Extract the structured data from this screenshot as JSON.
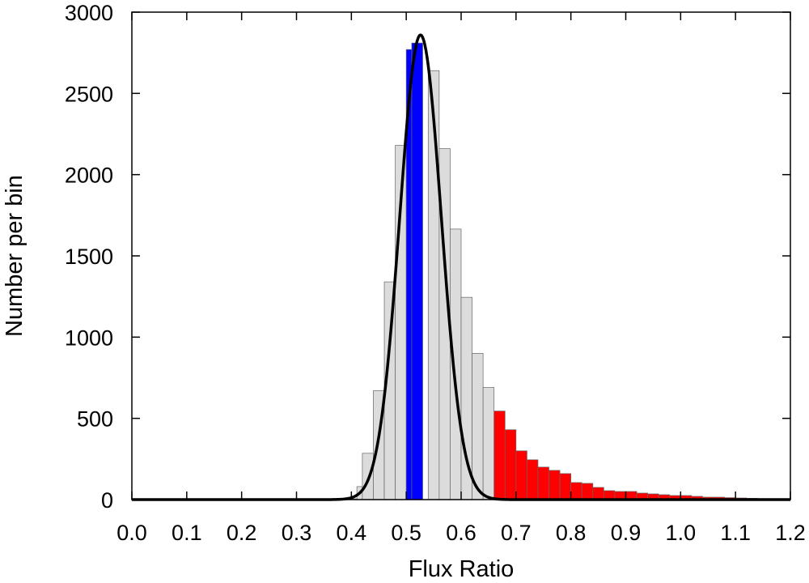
{
  "chart_data": {
    "type": "bar",
    "xlabel": "Flux Ratio",
    "ylabel": "Number per bin",
    "xlim": [
      0.0,
      1.2
    ],
    "ylim": [
      0,
      3000
    ],
    "xticks": [
      "0.0",
      "0.1",
      "0.2",
      "0.3",
      "0.4",
      "0.5",
      "0.6",
      "0.7",
      "0.8",
      "0.9",
      "1.0",
      "1.1",
      "1.2"
    ],
    "yticks": [
      "0",
      "500",
      "1000",
      "1500",
      "2000",
      "2500",
      "3000"
    ],
    "grid": false,
    "bin_width": 0.02,
    "bins": [
      {
        "x": 0.4,
        "value": 5,
        "color": "grey"
      },
      {
        "x": 0.41,
        "value": 80,
        "color": "grey"
      },
      {
        "x": 0.42,
        "value": 285,
        "color": "grey"
      },
      {
        "x": 0.44,
        "value": 670,
        "color": "grey"
      },
      {
        "x": 0.46,
        "value": 1340,
        "color": "grey"
      },
      {
        "x": 0.48,
        "value": 2180,
        "color": "grey"
      },
      {
        "x": 0.5,
        "value": 2770,
        "color": "blue"
      },
      {
        "x": 0.51,
        "value": 2810,
        "color": "blue"
      },
      {
        "x": 0.54,
        "value": 2640,
        "color": "grey"
      },
      {
        "x": 0.56,
        "value": 2160,
        "color": "grey"
      },
      {
        "x": 0.58,
        "value": 1665,
        "color": "grey"
      },
      {
        "x": 0.6,
        "value": 1245,
        "color": "grey"
      },
      {
        "x": 0.62,
        "value": 900,
        "color": "grey"
      },
      {
        "x": 0.64,
        "value": 690,
        "color": "grey"
      },
      {
        "x": 0.66,
        "value": 545,
        "color": "red"
      },
      {
        "x": 0.68,
        "value": 430,
        "color": "red"
      },
      {
        "x": 0.7,
        "value": 300,
        "color": "red"
      },
      {
        "x": 0.72,
        "value": 245,
        "color": "red"
      },
      {
        "x": 0.74,
        "value": 200,
        "color": "red"
      },
      {
        "x": 0.76,
        "value": 180,
        "color": "red"
      },
      {
        "x": 0.78,
        "value": 160,
        "color": "red"
      },
      {
        "x": 0.8,
        "value": 105,
        "color": "red"
      },
      {
        "x": 0.82,
        "value": 100,
        "color": "red"
      },
      {
        "x": 0.84,
        "value": 75,
        "color": "red"
      },
      {
        "x": 0.86,
        "value": 55,
        "color": "red"
      },
      {
        "x": 0.88,
        "value": 50,
        "color": "red"
      },
      {
        "x": 0.9,
        "value": 50,
        "color": "red"
      },
      {
        "x": 0.92,
        "value": 40,
        "color": "red"
      },
      {
        "x": 0.94,
        "value": 35,
        "color": "red"
      },
      {
        "x": 0.96,
        "value": 30,
        "color": "red"
      },
      {
        "x": 0.98,
        "value": 25,
        "color": "red"
      },
      {
        "x": 1.0,
        "value": 25,
        "color": "red"
      },
      {
        "x": 1.02,
        "value": 20,
        "color": "red"
      },
      {
        "x": 1.04,
        "value": 15,
        "color": "red"
      },
      {
        "x": 1.06,
        "value": 15,
        "color": "red"
      },
      {
        "x": 1.08,
        "value": 12,
        "color": "red"
      },
      {
        "x": 1.1,
        "value": 10,
        "color": "red"
      },
      {
        "x": 1.12,
        "value": 8,
        "color": "red"
      },
      {
        "x": 1.14,
        "value": 6,
        "color": "red"
      },
      {
        "x": 1.16,
        "value": 5,
        "color": "red"
      },
      {
        "x": 1.18,
        "value": 3,
        "color": "red"
      }
    ],
    "fit_curve": {
      "type": "gaussian",
      "peak": 2860,
      "center": 0.526,
      "sigma": 0.038
    },
    "colors": {
      "grey": "#dcdcdc",
      "blue": "#0000ff",
      "red": "#ff0000",
      "bar_edge": "#666666",
      "curve": "#000000",
      "axis": "#000000"
    }
  }
}
